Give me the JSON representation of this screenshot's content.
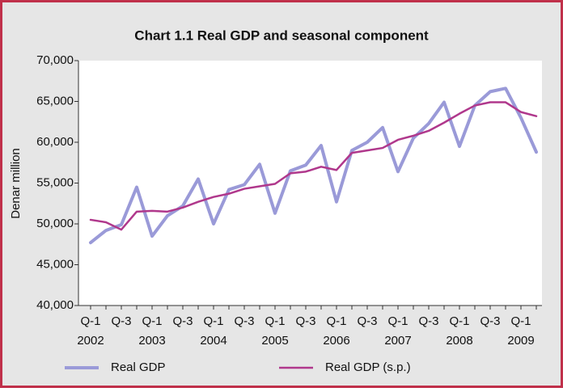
{
  "chart_data": {
    "type": "line",
    "title": "Chart 1.1 Real GDP and seasonal component",
    "y_label": "Denar million",
    "categories": [
      "Q-1",
      null,
      "Q-3",
      null,
      "Q-1",
      null,
      "Q-3",
      null,
      "Q-1",
      null,
      "Q-3",
      null,
      "Q-1",
      null,
      "Q-3",
      null,
      "Q-1",
      null,
      "Q-3",
      null,
      "Q-1",
      null,
      "Q-3",
      null,
      "Q-1",
      null,
      "Q-3",
      null,
      "Q-1",
      null
    ],
    "years": [
      "2002",
      null,
      null,
      null,
      "2003",
      null,
      null,
      null,
      "2004",
      null,
      null,
      null,
      "2005",
      null,
      null,
      null,
      "2006",
      null,
      null,
      null,
      "2007",
      null,
      null,
      null,
      "2008",
      null,
      null,
      null,
      "2009",
      null
    ],
    "series": [
      {
        "name": "Real GDP",
        "color": "#9a9ad8",
        "values": [
          47700,
          49200,
          49900,
          54500,
          48500,
          51000,
          52200,
          55500,
          50000,
          54200,
          54800,
          57300,
          51300,
          56500,
          57200,
          59600,
          52700,
          59000,
          60000,
          61800,
          56400,
          60500,
          62300,
          64900,
          59500,
          64500,
          66200,
          66600,
          63000,
          58800
        ]
      },
      {
        "name": "Real GDP (s.p.)",
        "color": "#b0388c",
        "values": [
          50500,
          50200,
          49300,
          51500,
          51600,
          51500,
          52000,
          52700,
          53300,
          53700,
          54300,
          54600,
          54900,
          56200,
          56400,
          57000,
          56600,
          58700,
          59000,
          59300,
          60300,
          60800,
          61400,
          62400,
          63500,
          64500,
          64900,
          64900,
          63700,
          63200
        ]
      }
    ],
    "ylim": [
      40000,
      70000
    ],
    "yticks": [
      {
        "value": 40000,
        "label": "40,000"
      },
      {
        "value": 45000,
        "label": "45,000"
      },
      {
        "value": 50000,
        "label": "50,000"
      },
      {
        "value": 55000,
        "label": "55,000"
      },
      {
        "value": 60000,
        "label": "60,000"
      },
      {
        "value": 65000,
        "label": "65,000"
      },
      {
        "value": 70000,
        "label": "70,000"
      }
    ],
    "grid": false
  }
}
